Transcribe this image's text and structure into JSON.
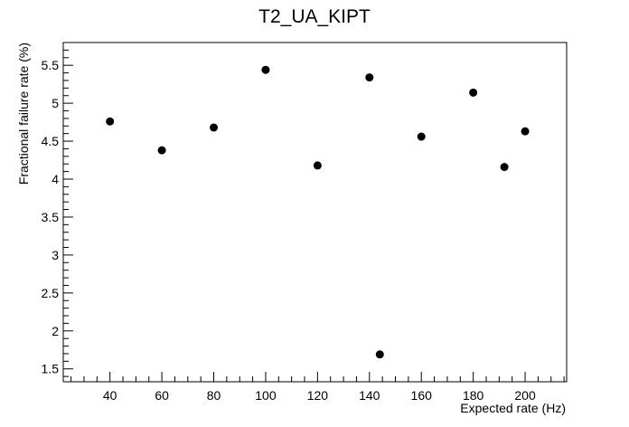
{
  "chart_data": {
    "type": "scatter",
    "title": "T2_UA_KIPT",
    "xlabel": "Expected rate (Hz)",
    "ylabel": "Fractional failure rate (%)",
    "xlim": [
      22,
      216
    ],
    "ylim": [
      1.33,
      5.8
    ],
    "x_ticks": [
      40,
      60,
      80,
      100,
      120,
      140,
      160,
      180,
      200
    ],
    "y_ticks": [
      1.5,
      2,
      2.5,
      3,
      3.5,
      4,
      4.5,
      5,
      5.5
    ],
    "x_tick_labels": [
      "40",
      "60",
      "80",
      "100",
      "120",
      "140",
      "160",
      "180",
      "200"
    ],
    "y_tick_labels": [
      "1.5",
      "2",
      "2.5",
      "3",
      "3.5",
      "4",
      "4.5",
      "5",
      "5.5"
    ],
    "points": [
      {
        "x": 40,
        "y": 4.76
      },
      {
        "x": 60,
        "y": 4.38
      },
      {
        "x": 80,
        "y": 4.68
      },
      {
        "x": 100,
        "y": 5.44
      },
      {
        "x": 120,
        "y": 4.18
      },
      {
        "x": 140,
        "y": 5.34
      },
      {
        "x": 144,
        "y": 1.69
      },
      {
        "x": 160,
        "y": 4.56
      },
      {
        "x": 180,
        "y": 5.14
      },
      {
        "x": 192,
        "y": 4.16
      },
      {
        "x": 200,
        "y": 4.63
      }
    ],
    "grid": false,
    "marker_color": "#000000"
  }
}
